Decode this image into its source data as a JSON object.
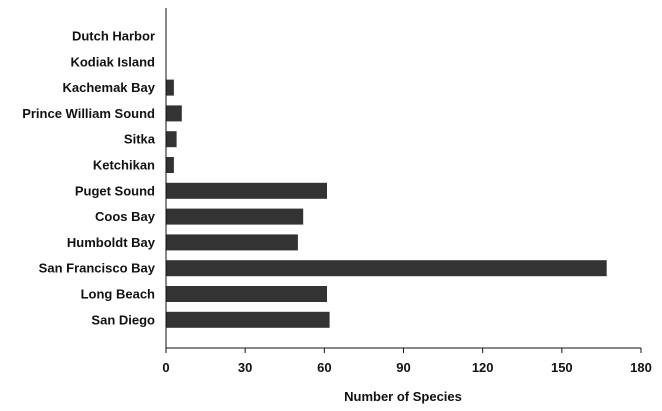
{
  "chart_data": {
    "type": "bar",
    "orientation": "horizontal",
    "categories": [
      "Dutch Harbor",
      "Kodiak Island",
      "Kachemak Bay",
      "Prince William Sound",
      "Sitka",
      "Ketchikan",
      "Puget Sound",
      "Coos Bay",
      "Humboldt Bay",
      "San Francisco Bay",
      "Long Beach",
      "San Diego"
    ],
    "values": [
      0,
      0,
      3,
      6,
      4,
      3,
      61,
      52,
      50,
      167,
      61,
      62
    ],
    "title": "",
    "xlabel": "Number of Species",
    "ylabel": "",
    "xlim": [
      0,
      180
    ],
    "xticks": [
      0,
      30,
      60,
      90,
      120,
      150,
      180
    ],
    "xtick_labels": [
      "0",
      "30",
      "60",
      "90",
      "120",
      "150",
      "180"
    ],
    "grid": false,
    "legend": "none",
    "bar_color": "#333333",
    "axis_color": "#111111"
  }
}
